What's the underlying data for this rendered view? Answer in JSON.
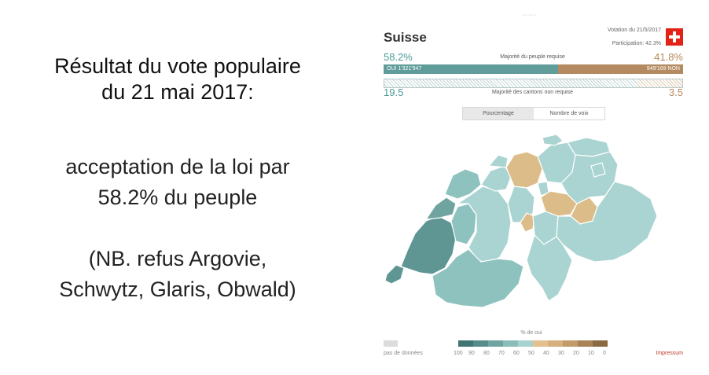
{
  "slide": {
    "title_line1": "Résultat du vote populaire",
    "title_line2": "du 21 mai 2017:",
    "body_lines": [
      "acceptation de la loi par",
      "58.2% du peuple",
      "",
      "(NB. refus Argovie,",
      "Schwytz, Glaris, Obwald)"
    ]
  },
  "result_panel": {
    "top_stub": "········",
    "country": "Suisse",
    "vote_date": "Votation du 21/5/2017",
    "participation": "Participation: 42.3%",
    "people": {
      "yes_pct": "58.2%",
      "no_pct": "41.8%",
      "label": "Majorité du peuple requise",
      "yes_votes": "OUI 1'321'947",
      "no_votes": "949'169 NON",
      "yes_share": 0.582
    },
    "cantons": {
      "yes": "19.5",
      "no": "3.5",
      "label": "Majorité des cantons non requise"
    },
    "toggle": {
      "percentage": "Pourcentage",
      "votes": "Nombre de voix"
    },
    "legend": {
      "title": "% de oui",
      "no_data": "pas de données",
      "ticks": [
        "100",
        "90",
        "80",
        "70",
        "60",
        "50",
        "40",
        "30",
        "20",
        "10",
        "0"
      ],
      "colors": [
        "#3f7574",
        "#568c8a",
        "#6fa4a1",
        "#8bbcb8",
        "#a8d2cf",
        "#e2c08f",
        "#d6b07e",
        "#c39a6a",
        "#a98256",
        "#8a6a42"
      ]
    },
    "impressum": "Impressum",
    "map_colors": {
      "yes_light": "#a9d4d1",
      "yes_mid": "#8ec2bf",
      "yes_dark": "#5f9694",
      "no": "#dcbd8a",
      "border": "#ffffff"
    },
    "map_no_cantons": [
      "Argovie",
      "Schwytz",
      "Glaris",
      "Obwald"
    ]
  }
}
